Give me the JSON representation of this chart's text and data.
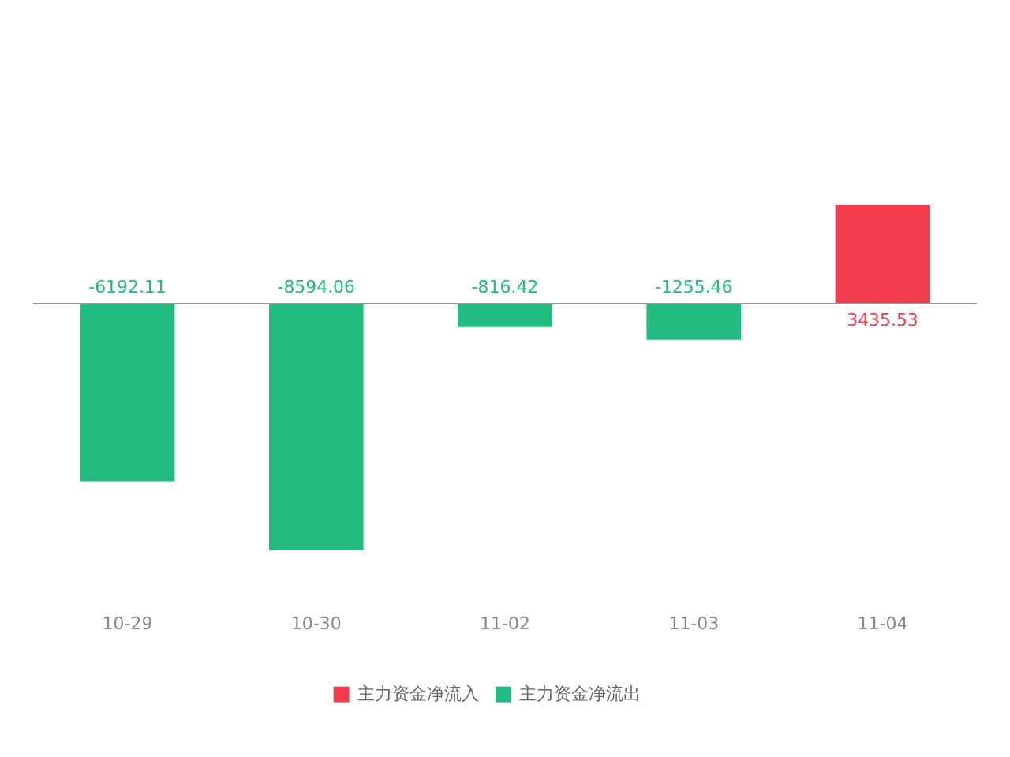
{
  "chart_data": {
    "type": "bar",
    "categories": [
      "10-29",
      "10-30",
      "11-02",
      "11-03",
      "11-04"
    ],
    "series": [
      {
        "name": "主力资金净流入",
        "color": "#f33d4e",
        "values": [
          null,
          null,
          null,
          null,
          3435.53
        ]
      },
      {
        "name": "主力资金净流出",
        "color": "#22bb7f",
        "values": [
          -6192.11,
          -8594.06,
          -816.42,
          -1255.46,
          null
        ]
      }
    ],
    "data_labels": true,
    "legend": "bottom"
  }
}
